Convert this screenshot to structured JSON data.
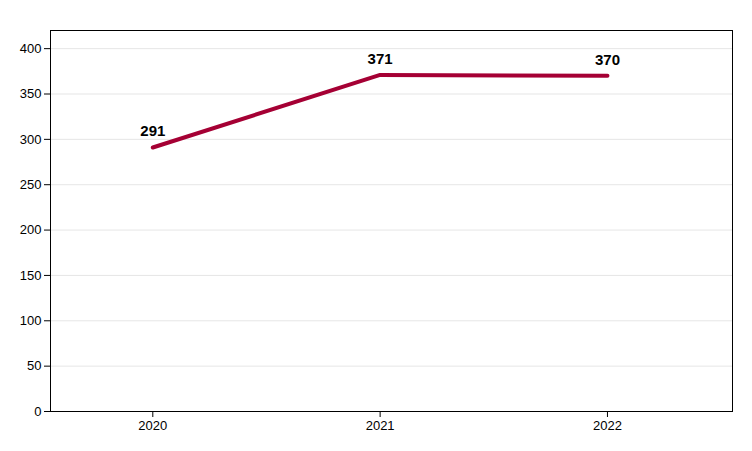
{
  "chart_data": {
    "type": "line",
    "x": [
      2020,
      2021,
      2022
    ],
    "values": [
      291,
      371,
      370
    ],
    "color": "#a50034",
    "xlim": [
      2019.55,
      2022.55
    ],
    "xticks": [
      2020,
      2021,
      2022
    ],
    "ylim": [
      0,
      420
    ],
    "yticks": [
      0,
      50,
      100,
      150,
      200,
      250,
      300,
      350,
      400
    ],
    "grid": true,
    "data_labels": true
  }
}
